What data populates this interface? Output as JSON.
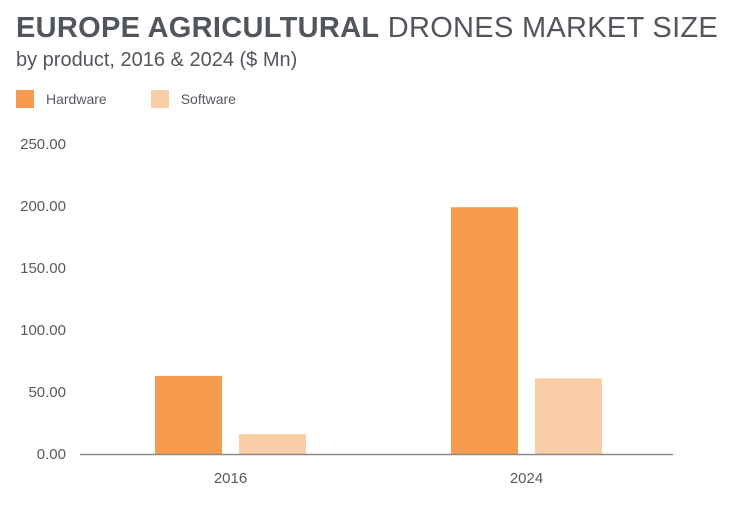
{
  "title_bold": "EUROPE AGRICULTURAL",
  "title_rest": "DRONES MARKET SIZE",
  "subtitle": "by product, 2016 & 2024 ($ Mn)",
  "chart_data": {
    "type": "bar",
    "title": "EUROPE AGRICULTURAL DRONES MARKET SIZE",
    "subtitle": "by product, 2016 & 2024 ($ Mn)",
    "categories": [
      "2016",
      "2024"
    ],
    "series": [
      {
        "name": "Hardware",
        "values": [
          63,
          199
        ],
        "color": "#f79c4e"
      },
      {
        "name": "Software",
        "values": [
          16,
          61
        ],
        "color": "#f9cda5"
      }
    ],
    "ylim": [
      0,
      250
    ],
    "yticks": [
      "0.00",
      "50.00",
      "100.00",
      "150.00",
      "200.00",
      "250.00"
    ],
    "grid": false,
    "legend": "top-left"
  }
}
